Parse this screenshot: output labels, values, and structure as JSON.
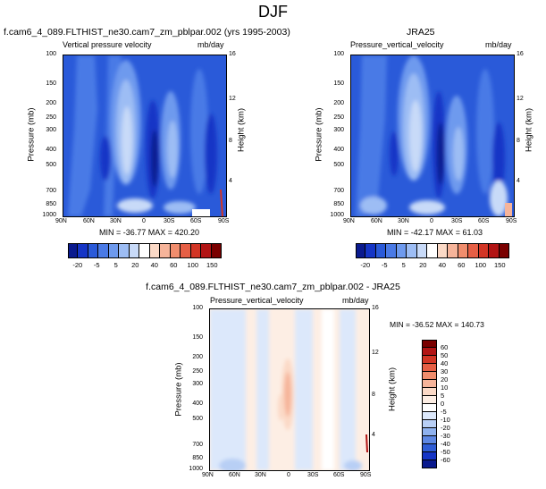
{
  "figure_title": "DJF",
  "chart_data": [
    {
      "type": "heatmap",
      "title": "f.cam6_4_089.FLTHIST_ne30.cam7_zm_pblpar.002 (yrs 1995-2003)",
      "left_label": "Vertical pressure velocity",
      "units_label": "mb/day",
      "ylabel": "Pressure (mb)",
      "y2label": "Height (km)",
      "x_ticks": [
        "90N",
        "60N",
        "30N",
        "0",
        "30S",
        "60S",
        "90S"
      ],
      "y_ticks": [
        "100",
        "150",
        "200",
        "250",
        "300",
        "400",
        "500",
        "700",
        "850",
        "1000"
      ],
      "y2_ticks": [
        "16",
        "12",
        "8",
        "4"
      ],
      "stats": "MIN = -36.77  MAX = 420.20",
      "colorbar_labels": [
        "-20",
        "-5",
        "5",
        "20",
        "40",
        "60",
        "100",
        "150"
      ],
      "colorbar_colors": [
        "#0a1a8e",
        "#1535c6",
        "#2a5ad9",
        "#4a7ae6",
        "#6e9aee",
        "#9dbdf4",
        "#c8daf8",
        "#ffffff",
        "#fbd9c6",
        "#f6b49a",
        "#f08d6d",
        "#e65f45",
        "#d23525",
        "#b21414",
        "#7a0000"
      ]
    },
    {
      "type": "heatmap",
      "title": "JRA25",
      "left_label": "Pressure_vertical_velocity",
      "units_label": "mb/day",
      "ylabel": "Pressure (mb)",
      "y2label": "Height (km)",
      "x_ticks": [
        "90N",
        "60N",
        "30N",
        "0",
        "30S",
        "60S",
        "90S"
      ],
      "y_ticks": [
        "100",
        "150",
        "200",
        "250",
        "300",
        "400",
        "500",
        "700",
        "850",
        "1000"
      ],
      "y2_ticks": [
        "16",
        "12",
        "8",
        "4"
      ],
      "stats": "MIN = -42.17  MAX =  61.03",
      "colorbar_labels": [
        "-20",
        "-5",
        "5",
        "20",
        "40",
        "60",
        "100",
        "150"
      ],
      "colorbar_colors": [
        "#0a1a8e",
        "#1535c6",
        "#2a5ad9",
        "#4a7ae6",
        "#6e9aee",
        "#9dbdf4",
        "#c8daf8",
        "#ffffff",
        "#fbd9c6",
        "#f6b49a",
        "#f08d6d",
        "#e65f45",
        "#d23525",
        "#b21414",
        "#7a0000"
      ]
    },
    {
      "type": "heatmap",
      "title": "f.cam6_4_089.FLTHIST_ne30.cam7_zm_pblpar.002 - JRA25",
      "left_label": "Pressure_vertical_velocity",
      "units_label": "mb/day",
      "ylabel": "Pressure (mb)",
      "y2label": "Height (km)",
      "x_ticks": [
        "90N",
        "60N",
        "30N",
        "0",
        "30S",
        "60S",
        "90S"
      ],
      "y_ticks": [
        "100",
        "150",
        "200",
        "250",
        "300",
        "400",
        "500",
        "700",
        "850",
        "1000"
      ],
      "y2_ticks": [
        "16",
        "12",
        "8",
        "4"
      ],
      "stats": "MIN = -36.52  MAX = 140.73",
      "colorbar_labels": [
        "60",
        "50",
        "40",
        "30",
        "20",
        "10",
        "5",
        "0",
        "-5",
        "-10",
        "-20",
        "-30",
        "-40",
        "-50",
        "-60"
      ],
      "colorbar_colors": [
        "#7a0000",
        "#b21414",
        "#d23525",
        "#e65f45",
        "#f08d6d",
        "#f6b49a",
        "#fbd9c6",
        "#fdeee4",
        "#ffffff",
        "#dce8fb",
        "#b8cff5",
        "#8fb2ef",
        "#5e88e4",
        "#2f5dd6",
        "#1535c6",
        "#0a1a8e"
      ]
    }
  ]
}
